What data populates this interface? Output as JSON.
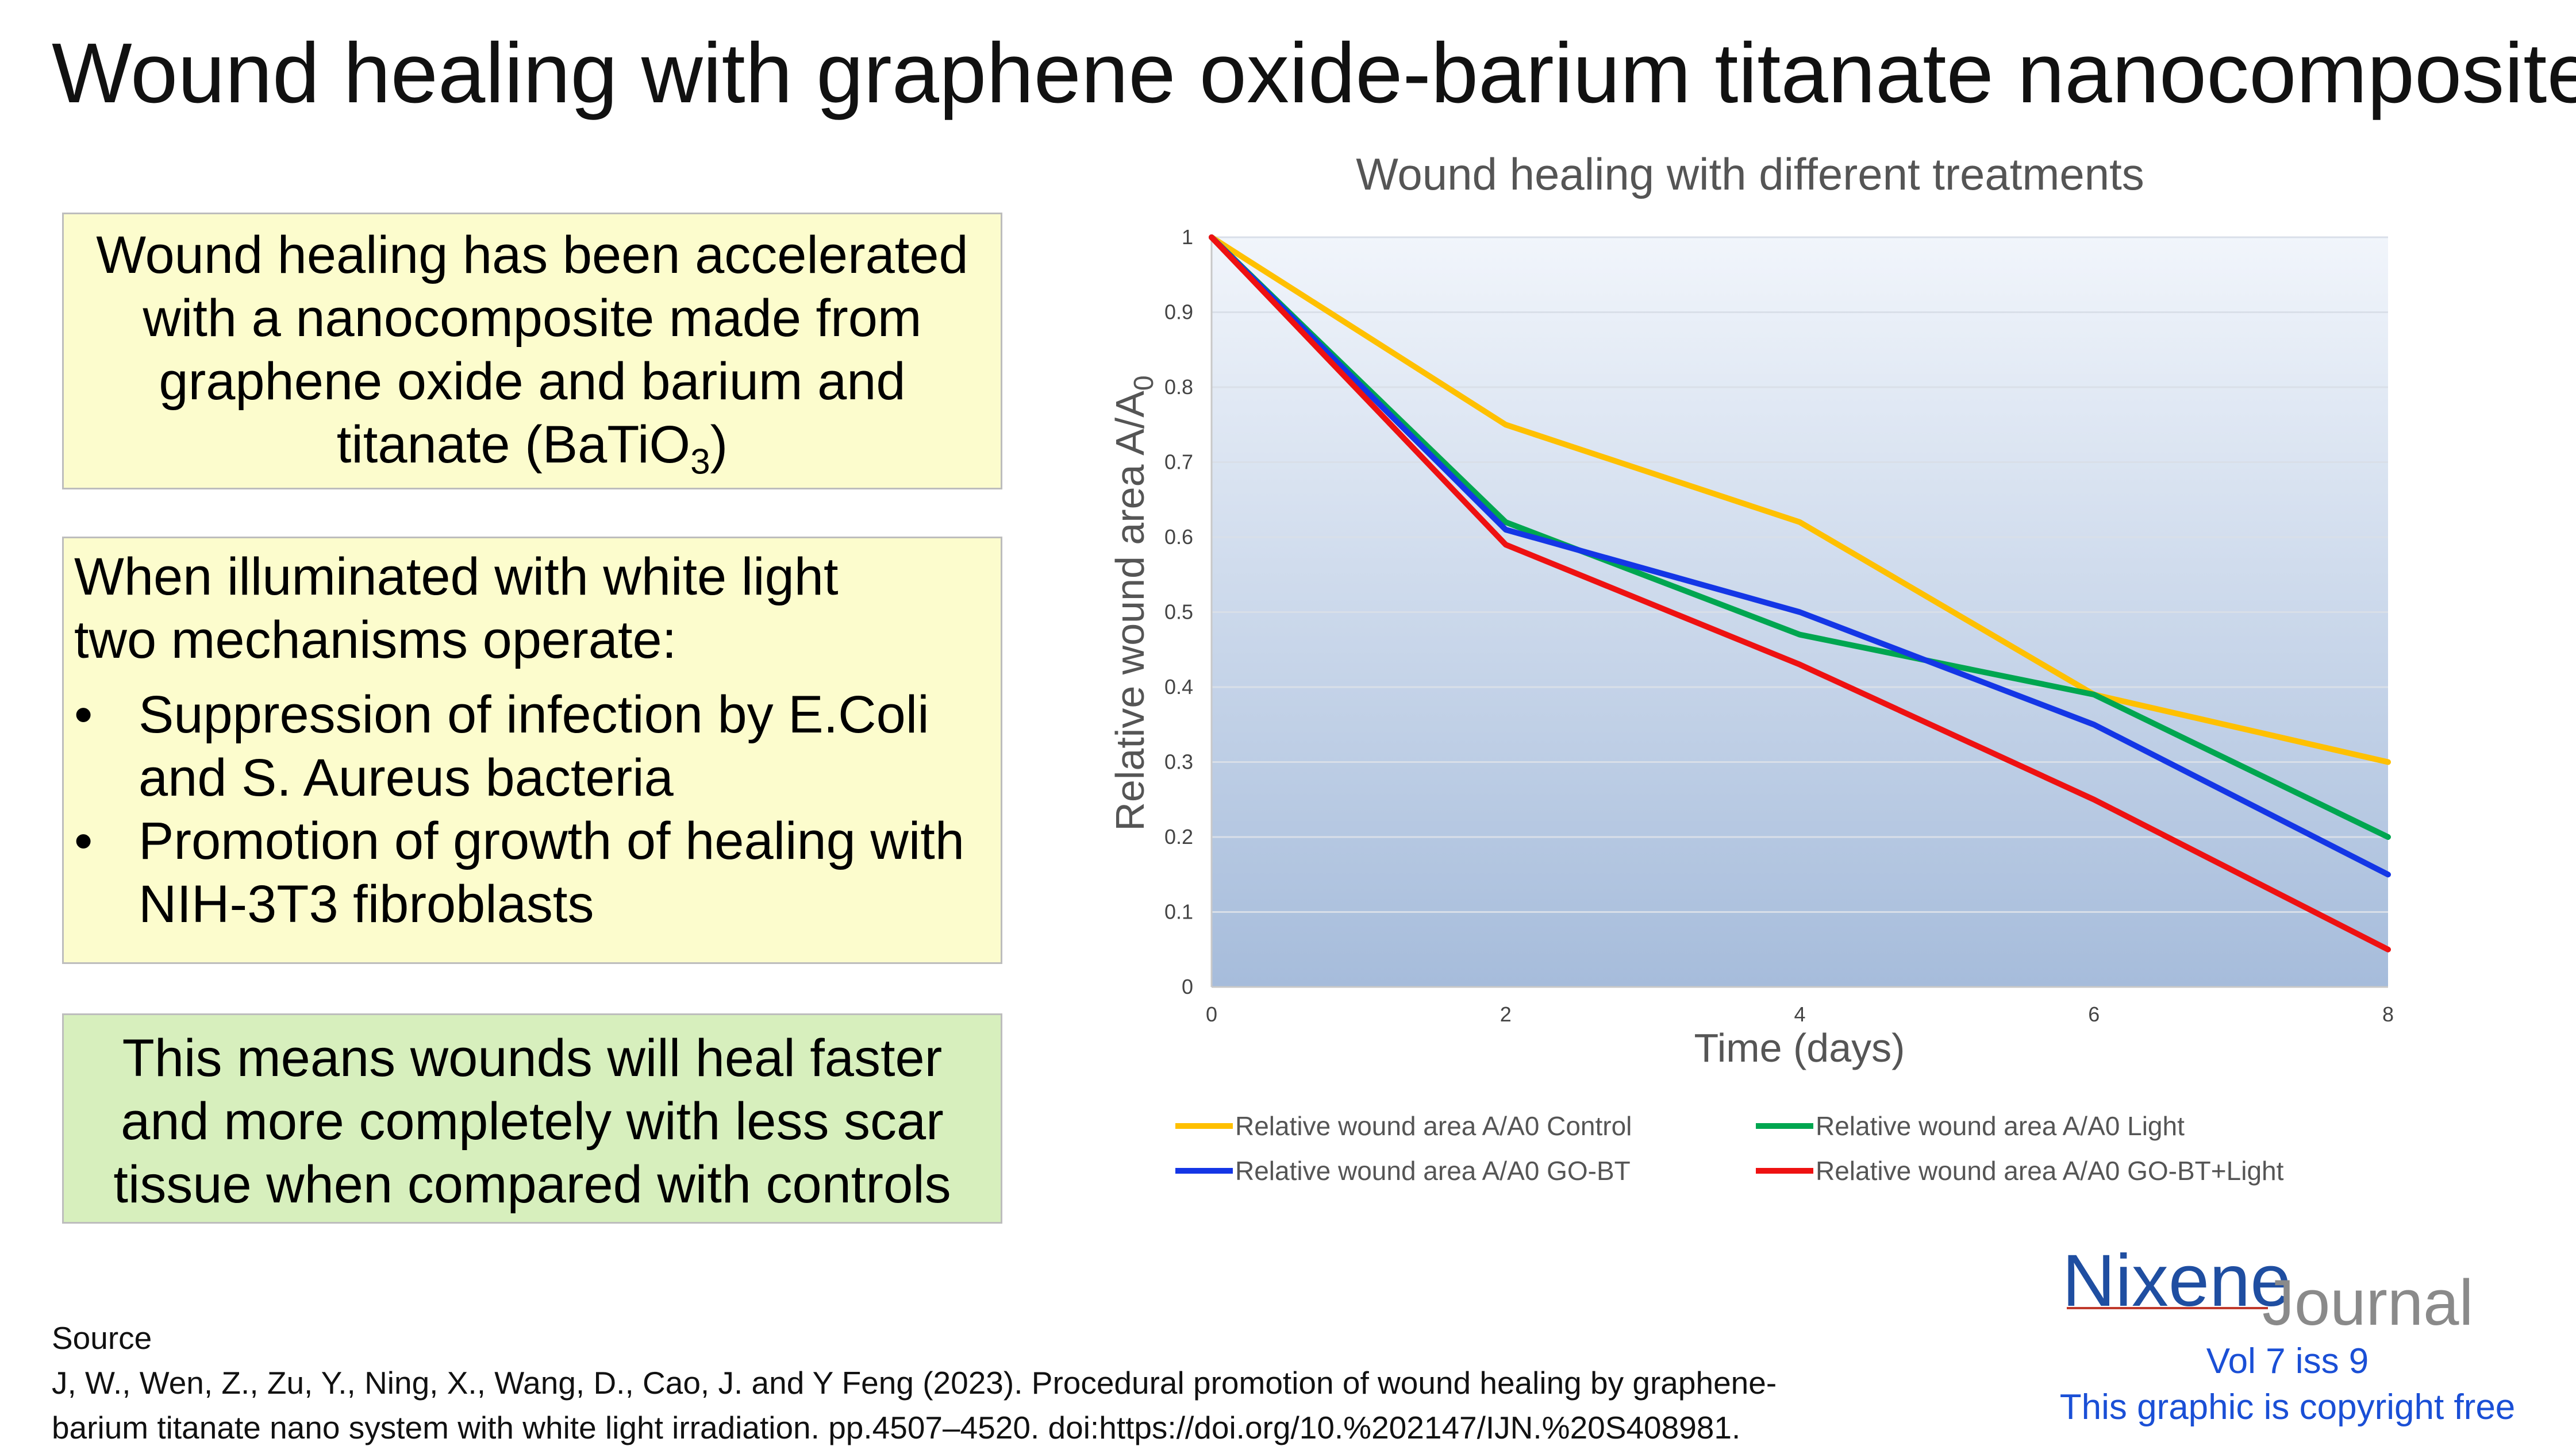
{
  "page": {
    "title": "Wound healing with graphene oxide-barium titanate nanocomposite"
  },
  "box1": {
    "line1": "Wound healing has been accelerated",
    "line2": "with a nanocomposite made from",
    "line3": "graphene oxide and  barium and",
    "line4_pre": "titanate (BaTiO",
    "line4_sub": "3",
    "line4_post": ")"
  },
  "box2": {
    "intro1": "When illuminated with white light",
    "intro2": "two mechanisms operate:",
    "bullet_char": "•",
    "bullets": [
      "Suppression of infection by E.Coli and S. Aureus bacteria",
      "Promotion of growth of healing with NIH-3T3 fibroblasts"
    ]
  },
  "box3": {
    "line1": "This means wounds will heal faster",
    "line2": "and more completely with less scar",
    "line3": "tissue when compared with controls"
  },
  "source": {
    "label": "Source",
    "line1": "J, W., Wen, Z., Zu, Y., Ning, X., Wang, D., Cao, J. and Y Feng (2023). Procedural promotion of wound healing by graphene-",
    "line2": "barium titanate nano system with white light irradiation. pp.4507–4520. doi:https://doi.org/10.%202147/IJN.%20S408981."
  },
  "branding": {
    "logo_part1": "Nixene",
    "logo_part2": "Journal",
    "volume": "Vol 7 iss 9",
    "copyright": "This graphic is copyright free"
  },
  "chart_data": {
    "type": "line",
    "title": "Wound healing with different treatments",
    "xlabel": "Time (days)",
    "ylabel_main": "Relative wound area A/A",
    "ylabel_sub": "0",
    "x": [
      0,
      2,
      4,
      6,
      8
    ],
    "xlim": [
      0,
      8
    ],
    "ylim": [
      0,
      1
    ],
    "xticks": [
      "0",
      "2",
      "4",
      "6",
      "8"
    ],
    "yticks": [
      "0",
      "0.1",
      "0.2",
      "0.3",
      "0.4",
      "0.5",
      "0.6",
      "0.7",
      "0.8",
      "0.9",
      "1"
    ],
    "grid": true,
    "legend_position": "bottom",
    "background": "gradient light-blue",
    "series": [
      {
        "name": "Relative wound area A/A0 Control",
        "color": "#ffc000",
        "values": [
          1.0,
          0.75,
          0.62,
          0.39,
          0.3
        ]
      },
      {
        "name": "Relative wound area A/A0 Light",
        "color": "#00a650",
        "values": [
          1.0,
          0.62,
          0.47,
          0.39,
          0.2
        ]
      },
      {
        "name": "Relative wound area A/A0 GO-BT",
        "color": "#1436e6",
        "values": [
          1.0,
          0.61,
          0.5,
          0.35,
          0.15
        ]
      },
      {
        "name": "Relative wound area A/A0 GO-BT+Light",
        "color": "#ee1111",
        "values": [
          1.0,
          0.59,
          0.43,
          0.25,
          0.05
        ]
      }
    ]
  }
}
